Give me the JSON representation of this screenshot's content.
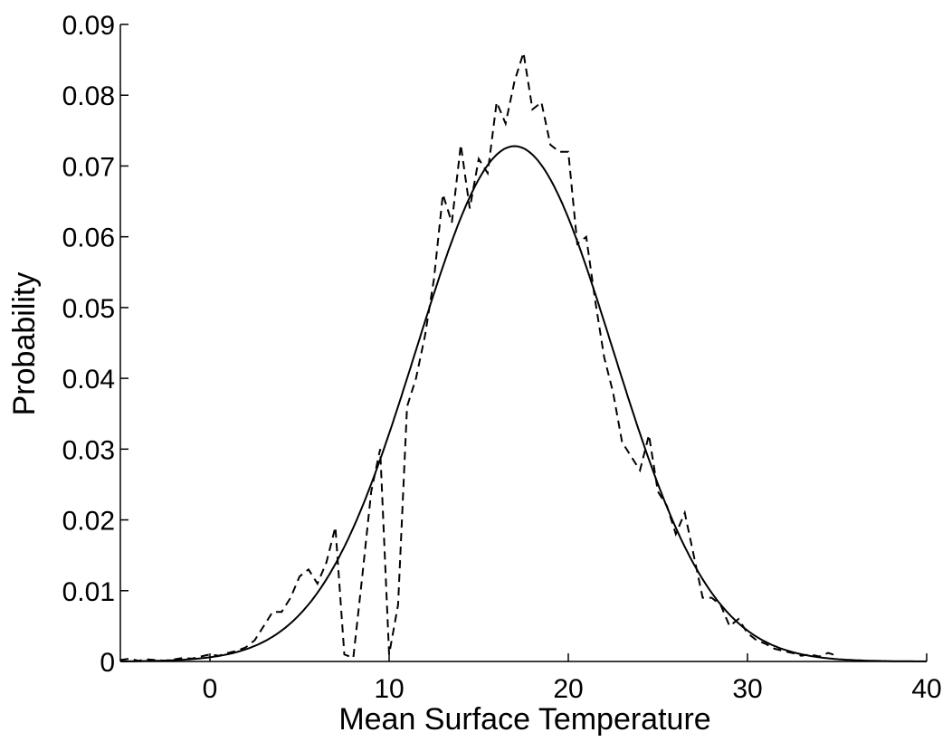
{
  "chart_data": {
    "type": "line",
    "title": "",
    "xlabel": "Mean Surface Temperature",
    "ylabel": "Probability",
    "xlim": [
      -5,
      40
    ],
    "ylim": [
      0,
      0.09
    ],
    "xticks": [
      0,
      10,
      20,
      30,
      40
    ],
    "xtick_labels": [
      "0",
      "10",
      "20",
      "30",
      "40"
    ],
    "yticks": [
      0,
      0.01,
      0.02,
      0.03,
      0.04,
      0.05,
      0.06,
      0.07,
      0.08,
      0.09
    ],
    "ytick_labels": [
      "0",
      "0.01",
      "0.02",
      "0.03",
      "0.04",
      "0.05",
      "0.06",
      "0.07",
      "0.08",
      "0.09"
    ],
    "grid": false,
    "legend": "none",
    "series": [
      {
        "style": "dashed",
        "color": "#000000",
        "x": [
          -5,
          -4.5,
          -4,
          -3.5,
          -3,
          -2.5,
          -2,
          -1.5,
          -1,
          -0.5,
          0,
          0.5,
          1,
          1.5,
          2,
          2.5,
          3,
          3.5,
          4,
          4.5,
          5,
          5.5,
          6,
          6.5,
          7,
          7.5,
          8,
          8.5,
          9,
          9.5,
          10,
          10.5,
          11,
          11.5,
          12,
          12.5,
          13,
          13.5,
          14,
          14.5,
          15,
          15.5,
          16,
          16.5,
          17,
          17.5,
          18,
          18.5,
          19,
          19.5,
          20,
          20.5,
          21,
          21.5,
          22,
          22.5,
          23,
          23.5,
          24,
          24.5,
          25,
          25.5,
          26,
          26.5,
          27,
          27.5,
          28,
          28.5,
          29,
          29.5,
          30,
          30.5,
          31,
          31.5,
          32,
          32.5,
          33,
          33.5,
          34,
          34.5,
          35
        ],
        "y": [
          0.0002,
          0.0004,
          0.0001,
          0.0003,
          0.0002,
          0.0001,
          0.0003,
          0.0005,
          0.0004,
          0.0007,
          0.001,
          0.0008,
          0.0012,
          0.0015,
          0.002,
          0.003,
          0.005,
          0.007,
          0.007,
          0.009,
          0.012,
          0.013,
          0.011,
          0.014,
          0.019,
          0.001,
          0.0005,
          0.012,
          0.024,
          0.03,
          0.001,
          0.008,
          0.036,
          0.04,
          0.046,
          0.054,
          0.066,
          0.062,
          0.073,
          0.064,
          0.071,
          0.069,
          0.079,
          0.076,
          0.082,
          0.086,
          0.078,
          0.079,
          0.073,
          0.072,
          0.072,
          0.059,
          0.06,
          0.051,
          0.043,
          0.038,
          0.031,
          0.029,
          0.027,
          0.032,
          0.024,
          0.022,
          0.018,
          0.021,
          0.015,
          0.009,
          0.009,
          0.008,
          0.005,
          0.006,
          0.004,
          0.003,
          0.0025,
          0.0018,
          0.0015,
          0.0012,
          0.0008,
          0.001,
          0.0007,
          0.0012,
          0.0008
        ]
      },
      {
        "style": "solid",
        "color": "#000000",
        "distribution": "normal",
        "mean": 17,
        "std": 5.48,
        "peak": 0.0728,
        "x_range": [
          -5,
          40
        ]
      }
    ]
  }
}
